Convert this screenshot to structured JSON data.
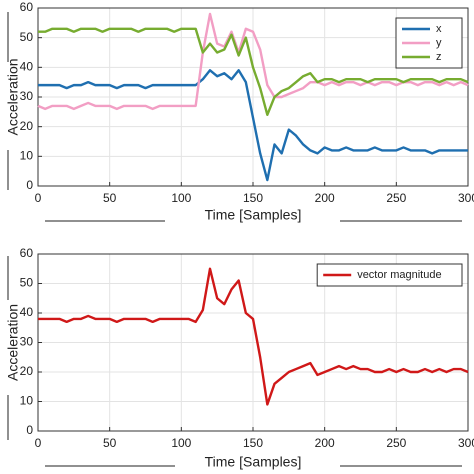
{
  "chart_data": [
    {
      "type": "line",
      "xlabel": "Time [Samples]",
      "ylabel": "Acceleration",
      "x": [
        0,
        5,
        10,
        15,
        20,
        25,
        30,
        35,
        40,
        45,
        50,
        55,
        60,
        65,
        70,
        75,
        80,
        85,
        90,
        95,
        100,
        105,
        110,
        115,
        120,
        125,
        130,
        135,
        140,
        145,
        150,
        155,
        160,
        165,
        170,
        175,
        180,
        185,
        190,
        195,
        200,
        205,
        210,
        215,
        220,
        225,
        230,
        235,
        240,
        245,
        250,
        255,
        260,
        265,
        270,
        275,
        280,
        285,
        290,
        295,
        300
      ],
      "series": [
        {
          "name": "x",
          "color": "#1f6fb0",
          "values": [
            34,
            34,
            34,
            34,
            33,
            34,
            34,
            35,
            34,
            34,
            34,
            33,
            34,
            34,
            34,
            33,
            34,
            34,
            34,
            34,
            34,
            34,
            34,
            36,
            39,
            37,
            38,
            36,
            39,
            35,
            23,
            11,
            2,
            14,
            11,
            19,
            17,
            14,
            12,
            11,
            13,
            12,
            12,
            13,
            12,
            12,
            12,
            13,
            12,
            12,
            12,
            13,
            12,
            12,
            12,
            11,
            12,
            12,
            12,
            12,
            12
          ]
        },
        {
          "name": "y",
          "color": "#f29ec4",
          "values": [
            27,
            26,
            27,
            27,
            27,
            26,
            27,
            28,
            27,
            27,
            27,
            26,
            27,
            27,
            27,
            27,
            26,
            27,
            27,
            27,
            27,
            27,
            27,
            45,
            58,
            48,
            47,
            52,
            45,
            53,
            52,
            46,
            34,
            30,
            30,
            31,
            32,
            33,
            35,
            35,
            34,
            35,
            34,
            35,
            35,
            34,
            35,
            34,
            35,
            35,
            34,
            35,
            35,
            34,
            35,
            35,
            34,
            35,
            34,
            35,
            34
          ]
        },
        {
          "name": "z",
          "color": "#77ac30",
          "values": [
            52,
            52,
            53,
            53,
            53,
            52,
            53,
            53,
            53,
            52,
            53,
            53,
            53,
            53,
            52,
            53,
            53,
            53,
            53,
            52,
            53,
            53,
            53,
            45,
            48,
            45,
            46,
            51,
            44,
            50,
            40,
            33,
            24,
            30,
            32,
            33,
            35,
            37,
            38,
            35,
            36,
            36,
            35,
            36,
            36,
            36,
            35,
            36,
            36,
            36,
            36,
            35,
            36,
            36,
            36,
            36,
            35,
            36,
            36,
            36,
            35
          ]
        }
      ],
      "xlim": [
        0,
        300
      ],
      "ylim": [
        0,
        60
      ],
      "xticks": [
        0,
        50,
        100,
        150,
        200,
        250,
        300
      ],
      "yticks": [
        0,
        10,
        20,
        30,
        40,
        50,
        60
      ],
      "grid": true,
      "legend": "upper right"
    },
    {
      "type": "line",
      "xlabel": "Time [Samples]",
      "ylabel": "Acceleration",
      "x": [
        0,
        5,
        10,
        15,
        20,
        25,
        30,
        35,
        40,
        45,
        50,
        55,
        60,
        65,
        70,
        75,
        80,
        85,
        90,
        95,
        100,
        105,
        110,
        115,
        120,
        125,
        130,
        135,
        140,
        145,
        150,
        155,
        160,
        165,
        170,
        175,
        180,
        185,
        190,
        195,
        200,
        205,
        210,
        215,
        220,
        225,
        230,
        235,
        240,
        245,
        250,
        255,
        260,
        265,
        270,
        275,
        280,
        285,
        290,
        295,
        300
      ],
      "series": [
        {
          "name": "vector magnitude",
          "color": "#d01818",
          "values": [
            38,
            38,
            38,
            38,
            37,
            38,
            38,
            39,
            38,
            38,
            38,
            37,
            38,
            38,
            38,
            38,
            37,
            38,
            38,
            38,
            38,
            38,
            37,
            41,
            55,
            45,
            43,
            48,
            51,
            40,
            38,
            25,
            9,
            16,
            18,
            20,
            21,
            22,
            23,
            19,
            20,
            21,
            22,
            21,
            22,
            21,
            21,
            20,
            20,
            21,
            20,
            21,
            20,
            20,
            21,
            20,
            21,
            20,
            21,
            21,
            20
          ]
        }
      ],
      "xlim": [
        0,
        300
      ],
      "ylim": [
        0,
        60
      ],
      "xticks": [
        0,
        50,
        100,
        150,
        200,
        250,
        300
      ],
      "yticks": [
        0,
        10,
        20,
        30,
        40,
        50,
        60
      ],
      "grid": true,
      "legend": "upper right"
    }
  ]
}
